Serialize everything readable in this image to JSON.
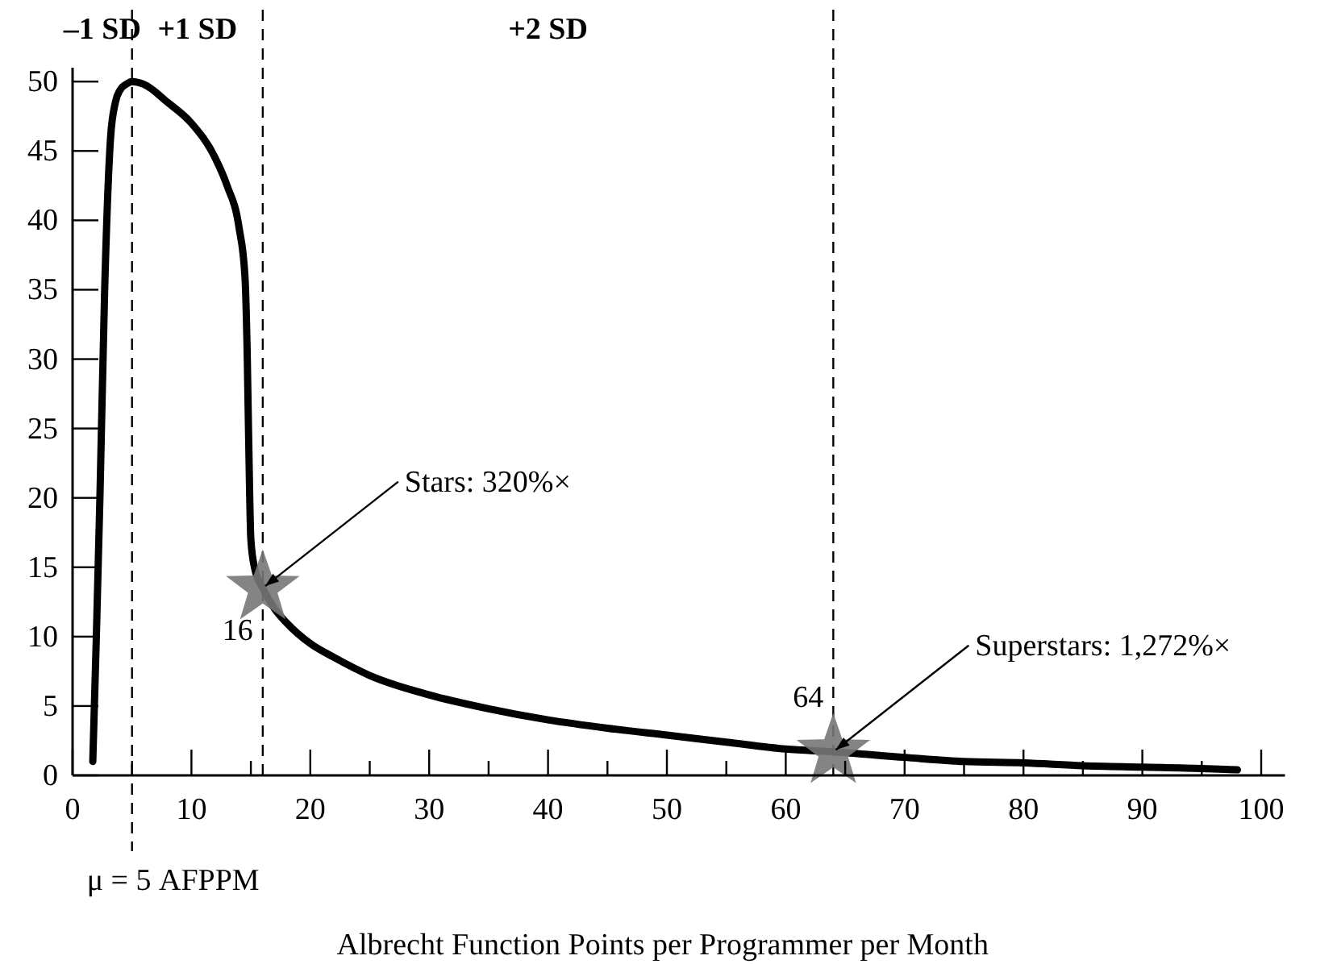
{
  "chart_data": {
    "type": "line",
    "xlabel": "Albrecht Function Points per Programmer per Month",
    "xlim": [
      0,
      102
    ],
    "ylim": [
      0,
      51
    ],
    "xticks": [
      0,
      {
        "value": 5,
        "label": null
      },
      10,
      {
        "value": 15,
        "label": null
      },
      20,
      {
        "value": 25,
        "label": null
      },
      30,
      {
        "value": 35,
        "label": null
      },
      40,
      {
        "value": 45,
        "label": null
      },
      50,
      {
        "value": 55,
        "label": null
      },
      60,
      {
        "value": 65,
        "label": null
      },
      70,
      {
        "value": 75,
        "label": null
      },
      80,
      {
        "value": 85,
        "label": null
      },
      90,
      {
        "value": 95,
        "label": null
      },
      100
    ],
    "yticks": [
      0,
      5,
      10,
      15,
      20,
      25,
      30,
      35,
      40,
      45,
      50
    ],
    "grid": false,
    "series": [
      {
        "color": "#000000",
        "marker": "none",
        "line_style": "solid",
        "x": [
          1.7,
          2.0,
          2.3,
          2.7,
          3.2,
          3.6,
          4.0,
          4.5,
          5,
          6,
          8,
          10,
          12,
          13,
          14,
          14.5,
          14.7,
          14.8,
          15.0,
          15.3,
          16,
          17,
          18,
          20,
          22,
          25,
          30,
          35,
          40,
          45,
          50,
          55,
          60,
          64,
          70,
          75,
          80,
          85,
          90,
          95,
          98
        ],
        "values": [
          1,
          10,
          20,
          35,
          46,
          48.5,
          49.4,
          49.8,
          50,
          49.8,
          48.5,
          47,
          44.5,
          42.5,
          39.5,
          36,
          30,
          25,
          17,
          15,
          13.5,
          12,
          11,
          9.5,
          8.5,
          7.2,
          5.8,
          4.8,
          4,
          3.4,
          2.9,
          2.4,
          1.9,
          1.7,
          1.3,
          1.0,
          0.9,
          0.7,
          0.6,
          0.5,
          0.4
        ]
      },
      {
        "type": "scatter",
        "color": "#777777",
        "marker": "star",
        "x": [
          16,
          64
        ],
        "values": [
          13.5,
          1.7
        ]
      }
    ],
    "ref_lines": [
      {
        "axis": "x",
        "value": 5,
        "label": "μ = 5 AFPPM",
        "line_style": "dashed",
        "color": "#000000"
      },
      {
        "axis": "x",
        "value": 16,
        "label": "16",
        "line_style": "dashed",
        "color": "#000000"
      },
      {
        "axis": "x",
        "value": 64,
        "label": "64",
        "line_style": "dashed",
        "color": "#000000"
      }
    ],
    "annotations": [
      "–1 SD",
      "+1 SD",
      "+2 SD",
      {
        "text": "Stars: 320%×",
        "x": 16,
        "y": 13.5
      },
      {
        "text": "Superstars: 1,272%×",
        "x": 64,
        "y": 1.7
      }
    ]
  }
}
